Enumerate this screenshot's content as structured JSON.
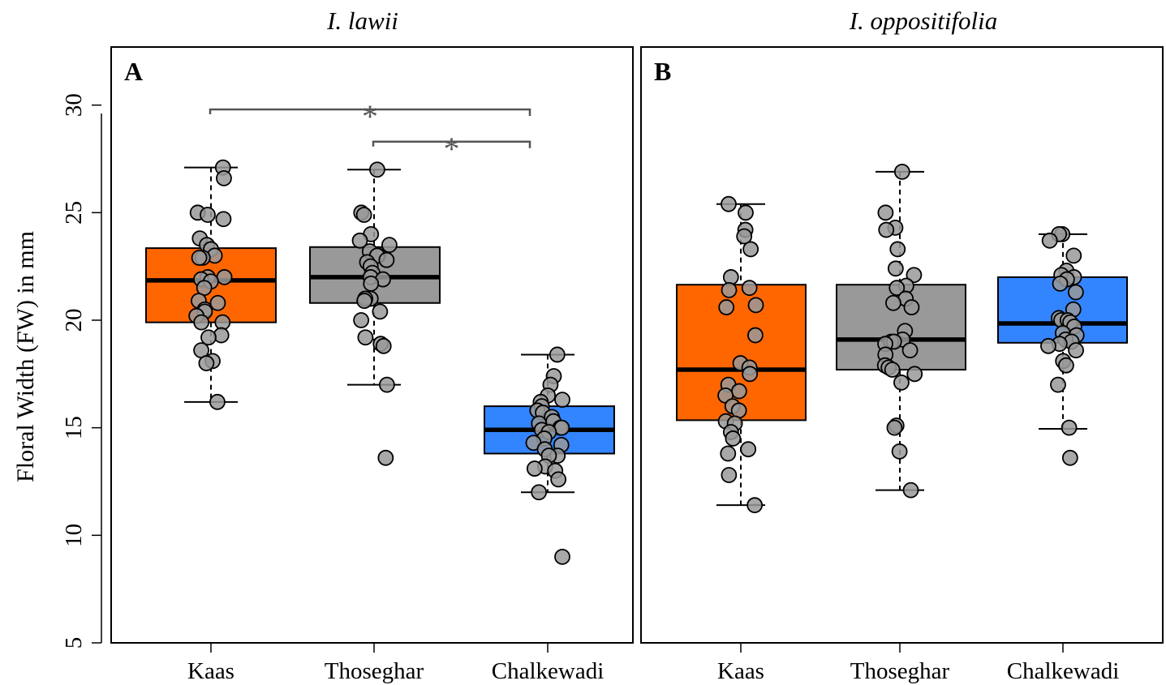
{
  "ylabel": "Floral Width (FW) in mm",
  "chart_data": [
    {
      "type": "box",
      "panel_letter": "A",
      "title": "I. lawii",
      "ylim": [
        5,
        32.7
      ],
      "yticks": [
        "5",
        "10",
        "15",
        "20",
        "25",
        "30"
      ],
      "categories": [
        "Kaas",
        "Thoseghar",
        "Chalkewadi"
      ],
      "colors": [
        "#ff6600",
        "#999999",
        "#3385ff"
      ],
      "boxes": [
        {
          "whisker_low": 16.2,
          "q1": 19.9,
          "median": 21.85,
          "q3": 23.35,
          "whisker_high": 27.1
        },
        {
          "whisker_low": 17.0,
          "q1": 20.8,
          "median": 22.0,
          "q3": 23.4,
          "whisker_high": 27.0
        },
        {
          "whisker_low": 12.0,
          "q1": 13.8,
          "median": 14.9,
          "q3": 16.0,
          "whisker_high": 18.4
        }
      ],
      "points": [
        [
          27.1,
          26.6,
          25.0,
          24.9,
          24.7,
          23.8,
          23.5,
          23.3,
          23.0,
          22.9,
          22.9,
          22.0,
          22.0,
          21.9,
          21.8,
          21.5,
          20.9,
          20.8,
          20.5,
          20.4,
          20.2,
          19.9,
          19.9,
          19.3,
          19.2,
          18.6,
          18.1,
          18.0,
          16.2
        ],
        [
          27.0,
          25.0,
          24.9,
          24.0,
          23.7,
          23.5,
          23.2,
          23.0,
          23.0,
          22.8,
          22.7,
          22.5,
          22.2,
          22.0,
          21.9,
          21.7,
          21.0,
          21.0,
          20.9,
          20.4,
          20.0,
          19.2,
          18.9,
          18.8,
          17.0,
          13.6
        ],
        [
          18.4,
          17.4,
          17.0,
          16.5,
          16.3,
          16.2,
          16.0,
          15.8,
          15.7,
          15.5,
          15.3,
          15.2,
          15.0,
          15.0,
          14.9,
          14.8,
          14.5,
          14.3,
          14.2,
          14.0,
          13.7,
          13.7,
          13.2,
          13.1,
          13.0,
          12.6,
          12.0,
          9.0
        ]
      ],
      "annotations": [
        {
          "from": 0,
          "to": 2,
          "level": 29.8,
          "label": "*"
        },
        {
          "from": 1,
          "to": 2,
          "level": 28.3,
          "label": "*"
        }
      ],
      "grid": false
    },
    {
      "type": "box",
      "panel_letter": "B",
      "title": "I. oppositifolia",
      "ylim": [
        5,
        32.7
      ],
      "categories": [
        "Kaas",
        "Thoseghar",
        "Chalkewadi"
      ],
      "colors": [
        "#ff6600",
        "#999999",
        "#3385ff"
      ],
      "boxes": [
        {
          "whisker_low": 11.4,
          "q1": 15.35,
          "median": 17.7,
          "q3": 21.65,
          "whisker_high": 25.4
        },
        {
          "whisker_low": 12.1,
          "q1": 17.7,
          "median": 19.1,
          "q3": 21.65,
          "whisker_high": 26.9
        },
        {
          "whisker_low": 14.95,
          "q1": 18.95,
          "median": 19.85,
          "q3": 22.0,
          "whisker_high": 24.0
        }
      ],
      "points": [
        [
          25.4,
          25.0,
          24.2,
          23.9,
          23.3,
          22.0,
          21.5,
          21.4,
          20.7,
          20.6,
          19.3,
          18.0,
          17.8,
          17.5,
          17.0,
          16.7,
          16.5,
          16.0,
          15.8,
          15.3,
          15.2,
          14.8,
          14.5,
          14.0,
          13.8,
          12.8,
          11.4
        ],
        [
          26.9,
          25.0,
          24.3,
          24.2,
          23.3,
          22.4,
          22.1,
          21.6,
          21.5,
          21.0,
          20.8,
          20.6,
          19.5,
          19.1,
          19.0,
          19.0,
          18.9,
          18.6,
          18.4,
          17.9,
          17.8,
          17.7,
          17.5,
          17.1,
          15.1,
          15.0,
          13.9,
          12.1
        ],
        [
          24.0,
          24.0,
          23.7,
          23.0,
          22.3,
          22.1,
          22.0,
          21.9,
          21.7,
          21.3,
          20.5,
          20.1,
          20.0,
          20.0,
          19.9,
          19.7,
          19.4,
          19.3,
          19.1,
          19.0,
          18.9,
          18.8,
          18.6,
          18.1,
          17.9,
          17.0,
          15.0,
          13.6
        ]
      ],
      "annotations": [],
      "grid": false
    }
  ]
}
